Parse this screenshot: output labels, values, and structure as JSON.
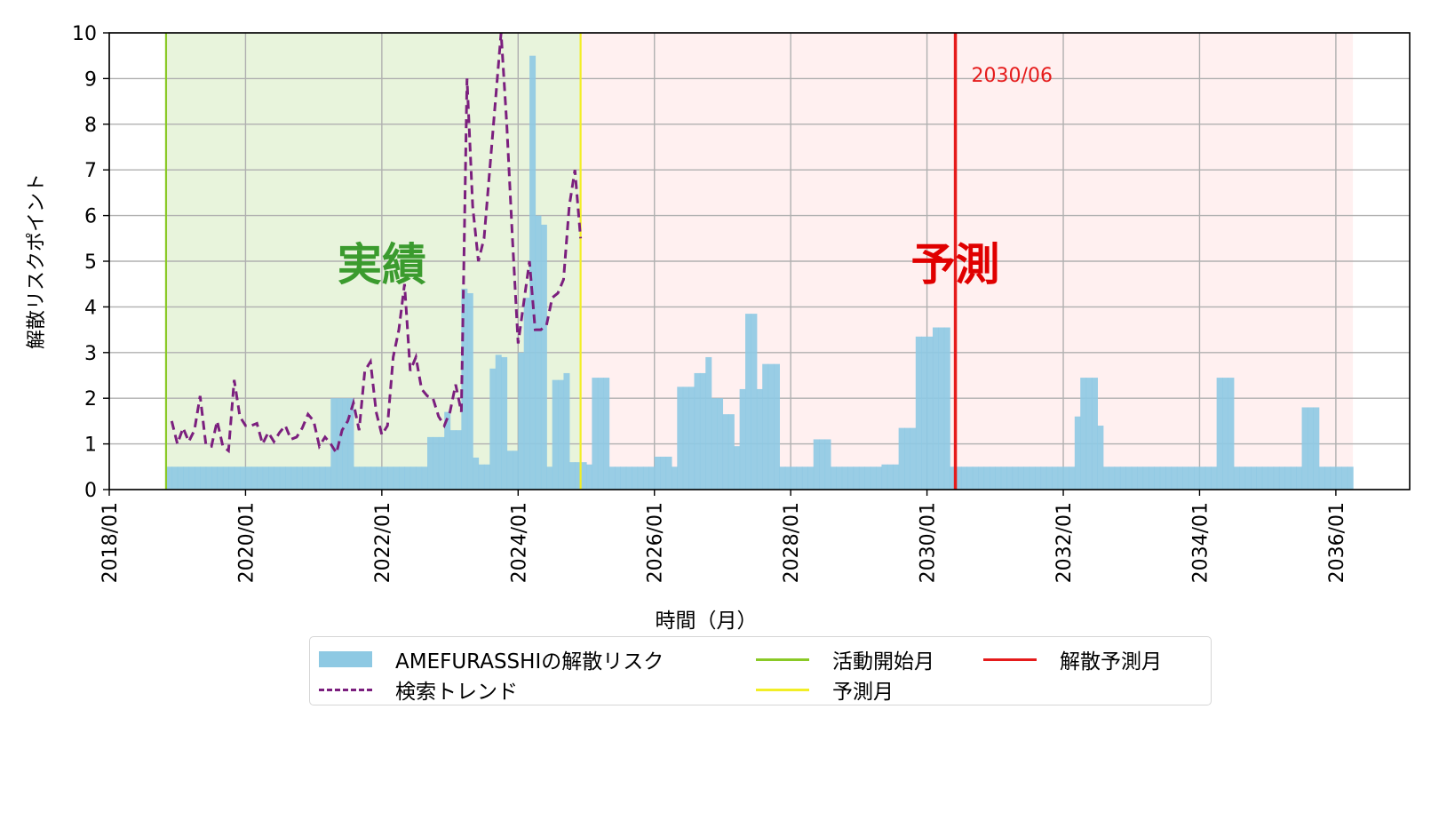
{
  "chart_data": {
    "type": "bar",
    "xlabel": "時間（月）",
    "ylabel": "解散リスクポイント",
    "ylim": [
      0,
      10
    ],
    "xlim": [
      "2018/01",
      "2037/02"
    ],
    "grid": true,
    "x_ticks": [
      "2018/01",
      "2020/01",
      "2022/01",
      "2024/01",
      "2026/01",
      "2028/01",
      "2030/01",
      "2032/01",
      "2034/01",
      "2036/01"
    ],
    "y_ticks": [
      "0",
      "1",
      "2",
      "3",
      "4",
      "5",
      "6",
      "7",
      "8",
      "9",
      "10"
    ],
    "regions": [
      {
        "label": "実績",
        "from": "2018/11",
        "to": "2024/12",
        "color": "#e8f4dc",
        "label_color": "#3b9b2e"
      },
      {
        "label": "予測",
        "from": "2024/12",
        "to": "2036/04",
        "color": "#fff0f0",
        "label_color": "#e00000"
      }
    ],
    "vlines": [
      {
        "name": "活動開始月",
        "date": "2018/11",
        "color": "#8ac926"
      },
      {
        "name": "予測月",
        "date": "2024/12",
        "color": "#f2ee26"
      },
      {
        "name": "解散予測月",
        "date": "2030/06",
        "color": "#e51b1b",
        "label": "2030/06"
      }
    ],
    "series": [
      {
        "name": "AMEFURASSHIの解散リスク",
        "kind": "bar",
        "color": "#8ec9e3",
        "step_points": [
          [
            "2018/11",
            0.5
          ],
          [
            "2021/04",
            2.0
          ],
          [
            "2021/08",
            0.5
          ],
          [
            "2022/09",
            1.15
          ],
          [
            "2022/12",
            1.7
          ],
          [
            "2023/01",
            1.3
          ],
          [
            "2023/03",
            4.4
          ],
          [
            "2023/04",
            4.3
          ],
          [
            "2023/05",
            0.7
          ],
          [
            "2023/06",
            0.55
          ],
          [
            "2023/08",
            2.65
          ],
          [
            "2023/09",
            2.95
          ],
          [
            "2023/10",
            2.9
          ],
          [
            "2023/11",
            0.85
          ],
          [
            "2024/01",
            3.0
          ],
          [
            "2024/02",
            4.2
          ],
          [
            "2024/03",
            9.5
          ],
          [
            "2024/04",
            6.0
          ],
          [
            "2024/05",
            5.8
          ],
          [
            "2024/06",
            0.5
          ],
          [
            "2024/07",
            2.4
          ],
          [
            "2024/09",
            2.55
          ],
          [
            "2024/10",
            0.6
          ],
          [
            "2025/01",
            0.55
          ],
          [
            "2025/02",
            2.45
          ],
          [
            "2025/05",
            0.5
          ],
          [
            "2026/01",
            0.72
          ],
          [
            "2026/04",
            0.5
          ],
          [
            "2026/05",
            2.25
          ],
          [
            "2026/08",
            2.55
          ],
          [
            "2026/10",
            2.9
          ],
          [
            "2026/11",
            2.0
          ],
          [
            "2027/01",
            1.65
          ],
          [
            "2027/03",
            0.95
          ],
          [
            "2027/04",
            2.2
          ],
          [
            "2027/05",
            3.85
          ],
          [
            "2027/07",
            2.2
          ],
          [
            "2027/08",
            2.75
          ],
          [
            "2027/11",
            0.5
          ],
          [
            "2028/05",
            1.1
          ],
          [
            "2028/08",
            0.5
          ],
          [
            "2029/05",
            0.55
          ],
          [
            "2029/08",
            1.35
          ],
          [
            "2029/11",
            3.35
          ],
          [
            "2030/02",
            3.55
          ],
          [
            "2030/05",
            0.5
          ],
          [
            "2032/03",
            1.6
          ],
          [
            "2032/04",
            2.45
          ],
          [
            "2032/07",
            1.4
          ],
          [
            "2032/08",
            0.5
          ],
          [
            "2034/04",
            2.45
          ],
          [
            "2034/07",
            0.5
          ],
          [
            "2035/07",
            1.8
          ],
          [
            "2035/10",
            0.5
          ],
          [
            "2036/04",
            0
          ]
        ]
      },
      {
        "name": "検索トレンド",
        "kind": "line",
        "style": "dashed",
        "color": "#7b1f7e",
        "points": [
          [
            "2018/12",
            1.5
          ],
          [
            "2019/01",
            1.0
          ],
          [
            "2019/02",
            1.35
          ],
          [
            "2019/03",
            1.05
          ],
          [
            "2019/04",
            1.3
          ],
          [
            "2019/05",
            2.05
          ],
          [
            "2019/06",
            1.0
          ],
          [
            "2019/07",
            0.95
          ],
          [
            "2019/08",
            1.5
          ],
          [
            "2019/09",
            0.95
          ],
          [
            "2019/10",
            0.85
          ],
          [
            "2019/11",
            2.4
          ],
          [
            "2019/12",
            1.6
          ],
          [
            "2020/01",
            1.4
          ],
          [
            "2020/02",
            1.4
          ],
          [
            "2020/03",
            1.45
          ],
          [
            "2020/04",
            1.0
          ],
          [
            "2020/05",
            1.25
          ],
          [
            "2020/06",
            1.05
          ],
          [
            "2020/07",
            1.25
          ],
          [
            "2020/08",
            1.4
          ],
          [
            "2020/09",
            1.1
          ],
          [
            "2020/10",
            1.15
          ],
          [
            "2020/11",
            1.35
          ],
          [
            "2020/12",
            1.65
          ],
          [
            "2021/01",
            1.5
          ],
          [
            "2021/02",
            0.95
          ],
          [
            "2021/03",
            1.15
          ],
          [
            "2021/04",
            1.0
          ],
          [
            "2021/05",
            0.8
          ],
          [
            "2021/06",
            1.3
          ],
          [
            "2021/07",
            1.5
          ],
          [
            "2021/08",
            1.9
          ],
          [
            "2021/09",
            1.3
          ],
          [
            "2021/10",
            2.6
          ],
          [
            "2021/11",
            2.8
          ],
          [
            "2021/12",
            1.7
          ],
          [
            "2022/01",
            1.2
          ],
          [
            "2022/02",
            1.4
          ],
          [
            "2022/03",
            2.9
          ],
          [
            "2022/04",
            3.5
          ],
          [
            "2022/05",
            4.5
          ],
          [
            "2022/06",
            2.6
          ],
          [
            "2022/07",
            2.9
          ],
          [
            "2022/08",
            2.2
          ],
          [
            "2022/09",
            2.05
          ],
          [
            "2022/10",
            2.0
          ],
          [
            "2022/11",
            1.6
          ],
          [
            "2022/12",
            1.4
          ],
          [
            "2023/01",
            1.7
          ],
          [
            "2023/02",
            2.3
          ],
          [
            "2023/03",
            1.7
          ],
          [
            "2023/04",
            9.0
          ],
          [
            "2023/05",
            6.2
          ],
          [
            "2023/06",
            5.0
          ],
          [
            "2023/07",
            5.5
          ],
          [
            "2023/08",
            7.0
          ],
          [
            "2023/09",
            8.5
          ],
          [
            "2023/10",
            10.0
          ],
          [
            "2023/11",
            8.0
          ],
          [
            "2023/12",
            5.5
          ],
          [
            "2024/01",
            3.2
          ],
          [
            "2024/02",
            4.1
          ],
          [
            "2024/03",
            5.0
          ],
          [
            "2024/04",
            3.5
          ],
          [
            "2024/05",
            3.5
          ],
          [
            "2024/06",
            3.6
          ],
          [
            "2024/07",
            4.2
          ],
          [
            "2024/08",
            4.3
          ],
          [
            "2024/09",
            4.6
          ],
          [
            "2024/10",
            6.2
          ],
          [
            "2024/11",
            7.0
          ],
          [
            "2024/12",
            5.5
          ]
        ]
      }
    ],
    "legend": {
      "placement": "bottom-center",
      "entries": [
        {
          "label": "AMEFURASSHIの解散リスク",
          "kind": "patch",
          "color": "#8ec9e3"
        },
        {
          "label": "検索トレンド",
          "kind": "dashed-line",
          "color": "#7b1f7e"
        },
        {
          "label": "活動開始月",
          "kind": "line",
          "color": "#8ac926"
        },
        {
          "label": "予測月",
          "kind": "line",
          "color": "#f2ee26"
        },
        {
          "label": "解散予測月",
          "kind": "line",
          "color": "#e51b1b"
        }
      ]
    }
  }
}
